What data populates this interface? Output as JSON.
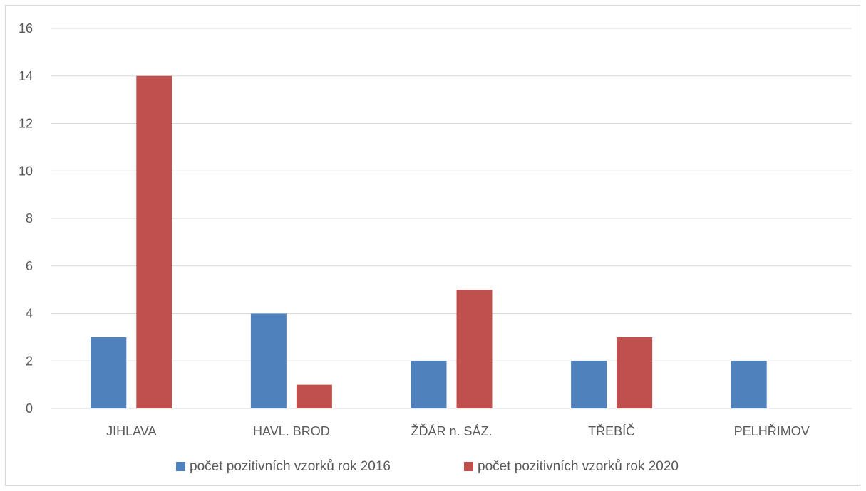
{
  "chart_data": {
    "type": "bar",
    "categories": [
      "JIHLAVA",
      "HAVL. BROD",
      "ŽĎÁR n. SÁZ.",
      "TŘEBÍČ",
      "PELHŘIMOV"
    ],
    "series": [
      {
        "name": "počet pozitivních vzorků rok 2016",
        "color": "#4f81bd",
        "values": [
          3,
          4,
          2,
          2,
          2
        ]
      },
      {
        "name": "počet pozitivních vzorků rok 2020",
        "color": "#c0504d",
        "values": [
          14,
          1,
          5,
          3,
          0
        ]
      }
    ],
    "ylim": [
      0,
      16
    ],
    "yticks": [
      "0",
      "2",
      "4",
      "6",
      "8",
      "10",
      "12",
      "14",
      "16"
    ],
    "grid": true,
    "legend_position": "bottom"
  }
}
